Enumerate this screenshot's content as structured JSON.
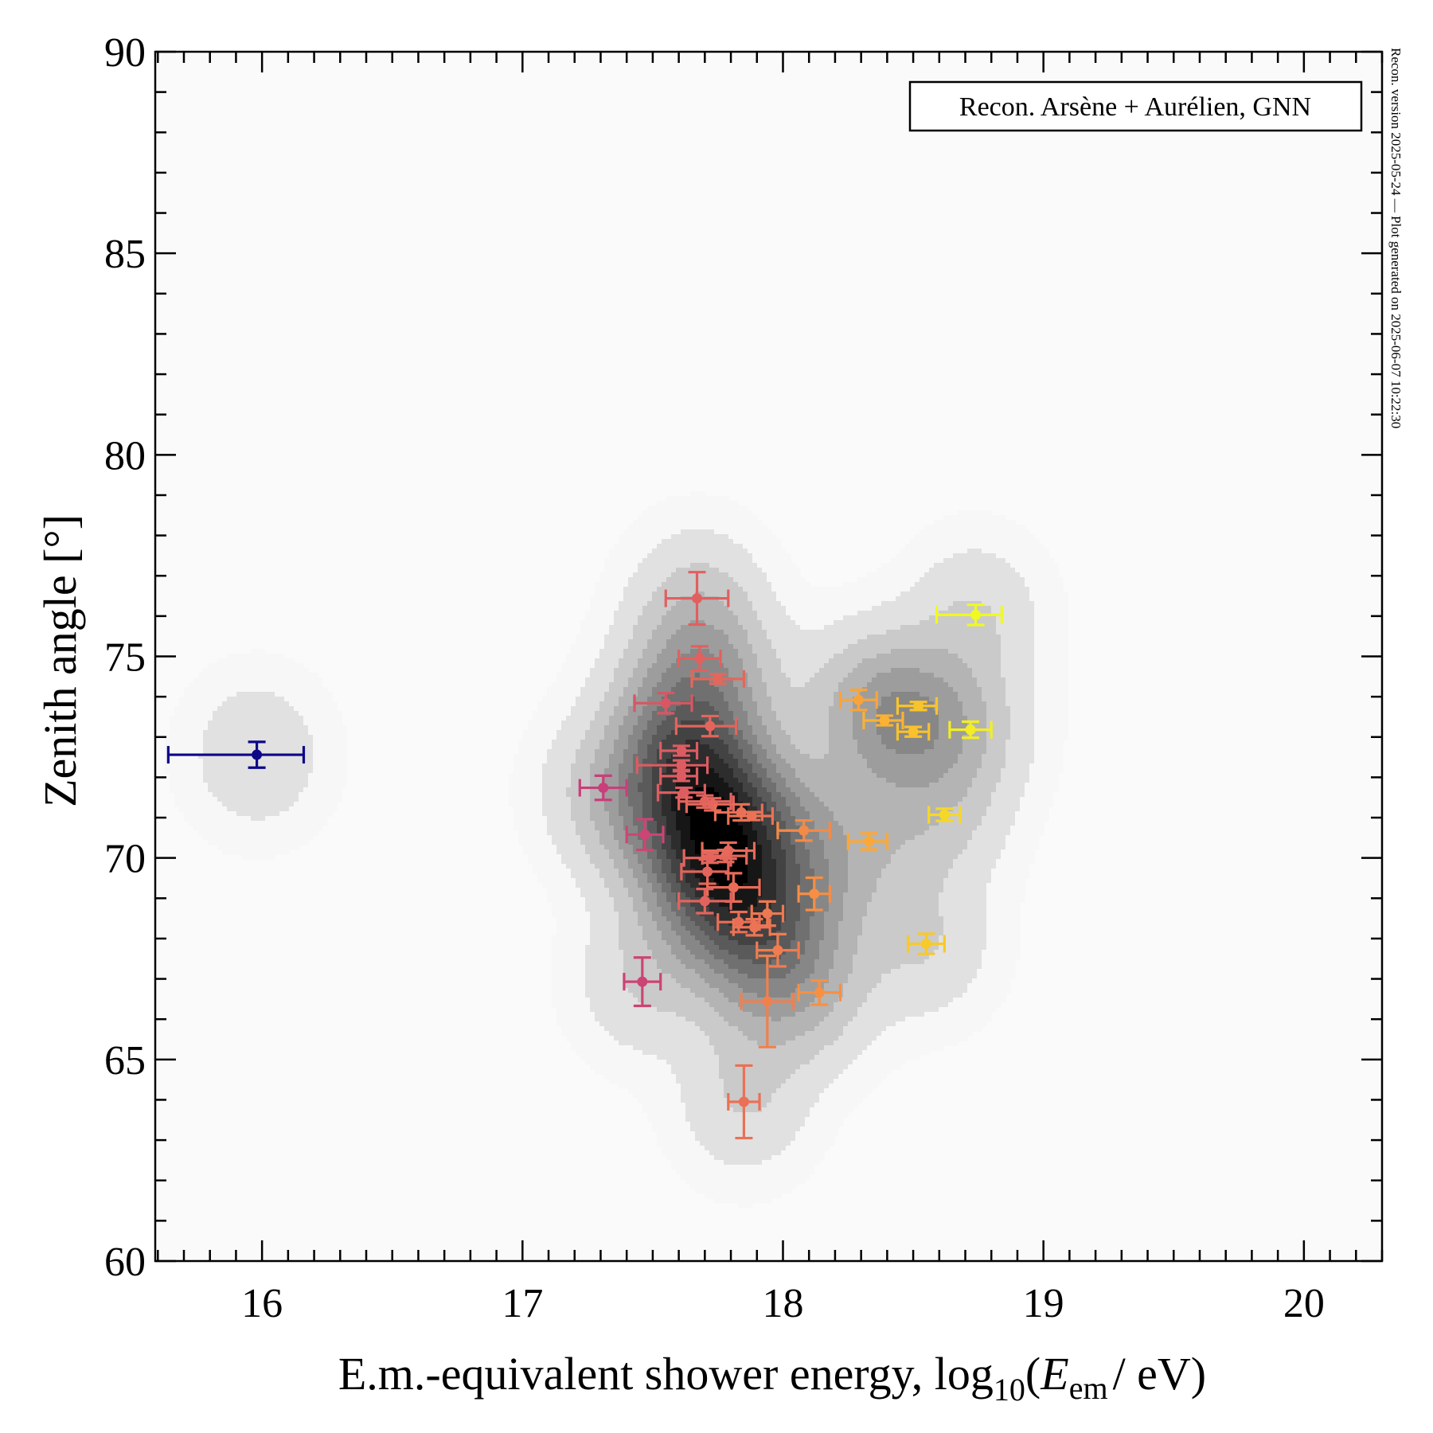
{
  "chart_data": {
    "type": "scatter",
    "title": "",
    "xlabel": {
      "main": "E.m.-equivalent shower energy, log",
      "sub": "10",
      "open": "(",
      "var": "E",
      "var_sub": "em",
      "unit": "/ eV)"
    },
    "ylabel": "Zenith angle [°]",
    "xlim": [
      15.59,
      20.3
    ],
    "ylim": [
      60,
      90
    ],
    "x_ticks": [
      16,
      17,
      18,
      19,
      20
    ],
    "x_tick_labels": [
      "16",
      "17",
      "18",
      "19",
      "20"
    ],
    "x_minor_step": 0.1,
    "y_ticks": [
      60,
      65,
      70,
      75,
      80,
      85,
      90
    ],
    "y_tick_labels": [
      "60",
      "65",
      "70",
      "75",
      "80",
      "85",
      "90"
    ],
    "y_minor_step": 1,
    "grid": false,
    "legend": {
      "text": "Recon. Arsène + Aurélien, GNN",
      "placement": "top-right"
    },
    "side_note": "Recon. version 2025-05-24 — Plot generated on 2025-06-07 10:22:30",
    "background_density": {
      "type": "kde-contour",
      "colormap": "greys",
      "levels": 12
    },
    "marker_colormap": "plasma (colored by energy)",
    "colors": {
      "blue": "#0d0887",
      "magenta": "#c83f79",
      "rose": "#de5a66",
      "coral": "#e8705a",
      "orange": "#f3894a",
      "amber": "#f9a43a",
      "gold": "#f8c52e",
      "yellow": "#f0f921"
    },
    "points": [
      {
        "x": 15.98,
        "y": 72.56,
        "xerr": [
          0.34,
          0.18
        ],
        "yerr": 0.32,
        "color": "#0d0887"
      },
      {
        "x": 17.31,
        "y": 71.74,
        "xerr": [
          0.09,
          0.09
        ],
        "yerr": 0.3,
        "color": "#c83f79"
      },
      {
        "x": 17.47,
        "y": 70.58,
        "xerr": [
          0.07,
          0.07
        ],
        "yerr": 0.38,
        "color": "#cc4575"
      },
      {
        "x": 17.46,
        "y": 66.93,
        "xerr": [
          0.07,
          0.07
        ],
        "yerr": 0.6,
        "color": "#cb4474"
      },
      {
        "x": 17.67,
        "y": 76.44,
        "xerr": [
          0.12,
          0.12
        ],
        "yerr": 0.65,
        "color": "#e0605f"
      },
      {
        "x": 17.68,
        "y": 74.95,
        "xerr": [
          0.08,
          0.08
        ],
        "yerr": 0.3,
        "color": "#e0615e"
      },
      {
        "x": 17.75,
        "y": 74.44,
        "xerr": [
          0.1,
          0.1
        ],
        "yerr": 0.12,
        "color": "#e4675b"
      },
      {
        "x": 17.55,
        "y": 73.84,
        "xerr": [
          0.12,
          0.1
        ],
        "yerr": 0.25,
        "color": "#d75764"
      },
      {
        "x": 17.72,
        "y": 73.27,
        "xerr": [
          0.13,
          0.1
        ],
        "yerr": 0.25,
        "color": "#e3655c"
      },
      {
        "x": 17.61,
        "y": 72.66,
        "xerr": [
          0.08,
          0.06
        ],
        "yerr": 0.12,
        "color": "#dc5c62"
      },
      {
        "x": 17.61,
        "y": 72.3,
        "xerr": [
          0.17,
          0.1
        ],
        "yerr": 0.12,
        "color": "#dc5c62"
      },
      {
        "x": 17.61,
        "y": 72.03,
        "xerr": [
          0.08,
          0.06
        ],
        "yerr": 0.12,
        "color": "#dc5c62"
      },
      {
        "x": 17.62,
        "y": 71.62,
        "xerr": [
          0.1,
          0.08
        ],
        "yerr": 0.12,
        "color": "#dd5d61"
      },
      {
        "x": 17.7,
        "y": 71.4,
        "xerr": [
          0.1,
          0.1
        ],
        "yerr": 0.15,
        "color": "#e2635d"
      },
      {
        "x": 17.73,
        "y": 71.33,
        "xerr": [
          0.1,
          0.08
        ],
        "yerr": 0.15,
        "color": "#e4665c"
      },
      {
        "x": 17.84,
        "y": 71.13,
        "xerr": [
          0.1,
          0.08
        ],
        "yerr": 0.2,
        "color": "#e96f57"
      },
      {
        "x": 17.88,
        "y": 71.04,
        "xerr": [
          0.09,
          0.08
        ],
        "yerr": 0.1,
        "color": "#eb7255"
      },
      {
        "x": 17.79,
        "y": 70.18,
        "xerr": [
          0.1,
          0.1
        ],
        "yerr": 0.2,
        "color": "#e66a5a"
      },
      {
        "x": 17.78,
        "y": 70.05,
        "xerr": [
          0.09,
          0.08
        ],
        "yerr": 0.15,
        "color": "#e6695a"
      },
      {
        "x": 17.72,
        "y": 70.0,
        "xerr": [
          0.1,
          0.08
        ],
        "yerr": 0.12,
        "color": "#e3655c"
      },
      {
        "x": 17.71,
        "y": 69.66,
        "xerr": [
          0.1,
          0.08
        ],
        "yerr": 0.3,
        "color": "#e2645d"
      },
      {
        "x": 17.81,
        "y": 69.27,
        "xerr": [
          0.1,
          0.1
        ],
        "yerr": 0.35,
        "color": "#e86c58"
      },
      {
        "x": 17.7,
        "y": 68.93,
        "xerr": [
          0.1,
          0.1
        ],
        "yerr": 0.3,
        "color": "#e2635d"
      },
      {
        "x": 17.94,
        "y": 68.62,
        "xerr": [
          0.06,
          0.06
        ],
        "yerr": 0.3,
        "color": "#ee7852"
      },
      {
        "x": 17.83,
        "y": 68.41,
        "xerr": [
          0.08,
          0.08
        ],
        "yerr": 0.25,
        "color": "#e96e57"
      },
      {
        "x": 17.89,
        "y": 68.28,
        "xerr": [
          0.08,
          0.06
        ],
        "yerr": 0.2,
        "color": "#ec7454"
      },
      {
        "x": 17.98,
        "y": 67.71,
        "xerr": [
          0.08,
          0.08
        ],
        "yerr": 0.4,
        "color": "#f07c50"
      },
      {
        "x": 17.94,
        "y": 66.44,
        "xerr": [
          0.1,
          0.1
        ],
        "yerr": 1.13,
        "color": "#f0804e"
      },
      {
        "x": 17.85,
        "y": 63.95,
        "xerr": [
          0.06,
          0.06
        ],
        "yerr": 0.9,
        "color": "#ea7156"
      },
      {
        "x": 18.08,
        "y": 70.68,
        "xerr": [
          0.1,
          0.1
        ],
        "yerr": 0.25,
        "color": "#f48a48"
      },
      {
        "x": 18.12,
        "y": 69.11,
        "xerr": [
          0.06,
          0.06
        ],
        "yerr": 0.4,
        "color": "#f68e45"
      },
      {
        "x": 18.14,
        "y": 66.66,
        "xerr": [
          0.08,
          0.08
        ],
        "yerr": 0.3,
        "color": "#f79043"
      },
      {
        "x": 18.29,
        "y": 73.92,
        "xerr": [
          0.07,
          0.07
        ],
        "yerr": 0.25,
        "color": "#f9a43a"
      },
      {
        "x": 18.33,
        "y": 70.41,
        "xerr": [
          0.08,
          0.07
        ],
        "yerr": 0.2,
        "color": "#faa838"
      },
      {
        "x": 18.39,
        "y": 73.41,
        "xerr": [
          0.08,
          0.07
        ],
        "yerr": 0.12,
        "color": "#fab234"
      },
      {
        "x": 18.5,
        "y": 73.13,
        "xerr": [
          0.06,
          0.06
        ],
        "yerr": 0.12,
        "color": "#f9c12d"
      },
      {
        "x": 18.52,
        "y": 73.77,
        "xerr": [
          0.08,
          0.07
        ],
        "yerr": 0.1,
        "color": "#f8c42c"
      },
      {
        "x": 18.55,
        "y": 67.87,
        "xerr": [
          0.07,
          0.07
        ],
        "yerr": 0.25,
        "color": "#f7c92b"
      },
      {
        "x": 18.62,
        "y": 71.07,
        "xerr": [
          0.06,
          0.06
        ],
        "yerr": 0.15,
        "color": "#f5d827"
      },
      {
        "x": 18.72,
        "y": 73.18,
        "xerr": [
          0.08,
          0.08
        ],
        "yerr": 0.2,
        "color": "#f2ee23"
      },
      {
        "x": 18.74,
        "y": 76.03,
        "xerr": [
          0.15,
          0.1
        ],
        "yerr": 0.25,
        "color": "#f0f921"
      }
    ]
  }
}
